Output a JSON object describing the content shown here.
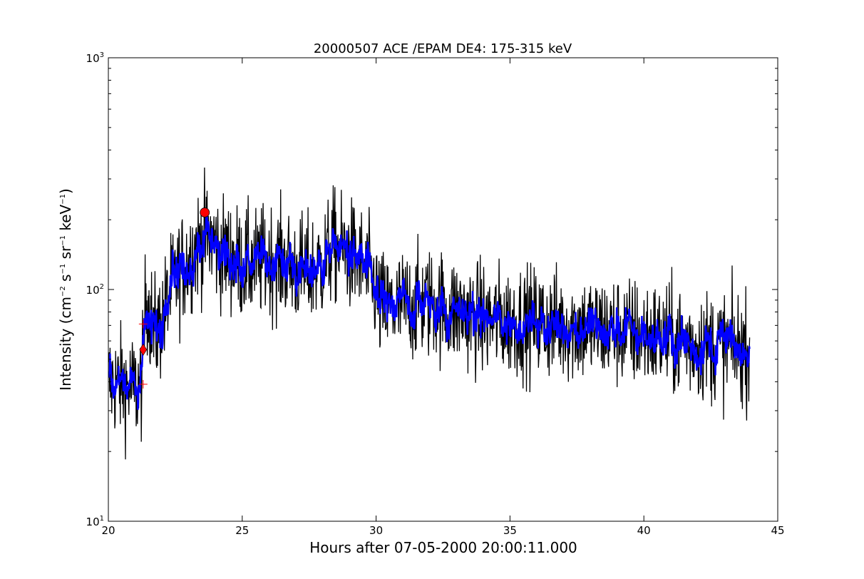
{
  "chart_data": {
    "type": "line",
    "title": "20000507 ACE /EPAM DE4: 175-315 keV",
    "xlabel": "Hours after 07-05-2000 20:00:11.000",
    "ylabel": {
      "prefix": "Intensity (cm",
      "exp1": "−2",
      "mid1": "s",
      "exp2": "−1",
      "mid2": "sr",
      "exp3": "−1",
      "mid3": "keV",
      "exp4": "−1",
      "suffix": ")"
    },
    "x_scale": "linear",
    "y_scale": "log",
    "xlim": [
      20,
      45
    ],
    "ylim": [
      10,
      1000
    ],
    "xticks": [
      20,
      25,
      30,
      35,
      40,
      45
    ],
    "yticks": [
      {
        "value": 10,
        "base": "10",
        "exp": "1"
      },
      {
        "value": 100,
        "base": "10",
        "exp": "2"
      },
      {
        "value": 1000,
        "base": "10",
        "exp": "3"
      }
    ],
    "grid": false,
    "series": [
      {
        "role": "raw intensity",
        "color": "#000000",
        "x_range": [
          20.0,
          43.95
        ],
        "envelope": [
          [
            20.0,
            40
          ],
          [
            20.5,
            39
          ],
          [
            21.0,
            37
          ],
          [
            21.2,
            38
          ],
          [
            21.3,
            45
          ],
          [
            21.4,
            100
          ],
          [
            21.5,
            85
          ],
          [
            21.7,
            65
          ],
          [
            21.9,
            68
          ],
          [
            22.1,
            80
          ],
          [
            22.4,
            105
          ],
          [
            22.8,
            125
          ],
          [
            23.2,
            148
          ],
          [
            23.6,
            170
          ],
          [
            23.9,
            162
          ],
          [
            24.2,
            145
          ],
          [
            24.6,
            138
          ],
          [
            25.0,
            130
          ],
          [
            25.5,
            128
          ],
          [
            26.0,
            135
          ],
          [
            26.5,
            132
          ],
          [
            27.0,
            122
          ],
          [
            27.5,
            120
          ],
          [
            28.0,
            128
          ],
          [
            28.4,
            155
          ],
          [
            28.8,
            145
          ],
          [
            29.3,
            135
          ],
          [
            29.8,
            112
          ],
          [
            30.0,
            100
          ],
          [
            30.1,
            85
          ],
          [
            30.5,
            82
          ],
          [
            31.0,
            85
          ],
          [
            32.0,
            88
          ],
          [
            33.0,
            80
          ],
          [
            34.0,
            74
          ],
          [
            35.0,
            73
          ],
          [
            36.0,
            72
          ],
          [
            37.0,
            70
          ],
          [
            38.0,
            68
          ],
          [
            39.0,
            66
          ],
          [
            40.0,
            64
          ],
          [
            41.0,
            61
          ],
          [
            42.0,
            58
          ],
          [
            43.0,
            57
          ],
          [
            43.95,
            55
          ]
        ],
        "scatter_log10": 0.12
      },
      {
        "role": "smoothed intensity",
        "color": "#0000ff",
        "x_range": [
          20.0,
          43.95
        ]
      }
    ],
    "markers": [
      {
        "shape": "circle",
        "color": "#ff0000",
        "x": 23.6,
        "y": 215
      },
      {
        "shape": "diamond",
        "color": "#ff0000",
        "x": 21.3,
        "y": 55
      },
      {
        "shape": "plus",
        "color": "#ff0000",
        "x": 21.3,
        "y": 71
      },
      {
        "shape": "plus",
        "color": "#ff0000",
        "x": 21.3,
        "y": 39
      }
    ]
  }
}
